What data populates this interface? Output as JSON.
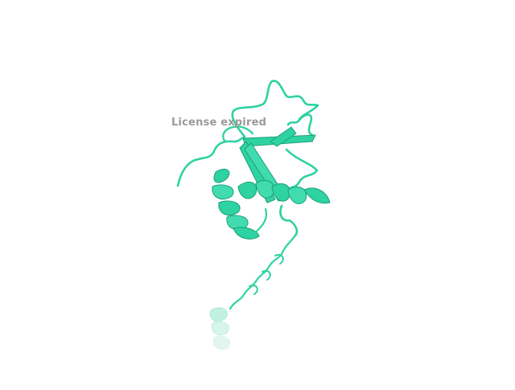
{
  "watermark": {
    "text": "License expired"
  },
  "structure": {
    "style": "cartoon ribbon",
    "colors": {
      "ribbon": "#2fd2a2",
      "ribbon_dark": "#1e9f78",
      "ribbon_light": "#62e3bd",
      "fade": "#cfeee4"
    }
  }
}
